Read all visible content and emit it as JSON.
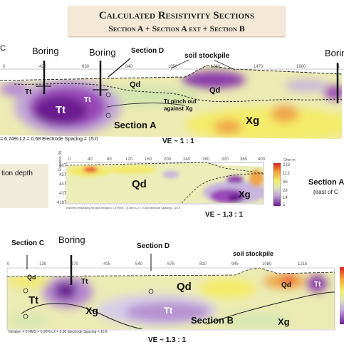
{
  "title": {
    "line1": "Calculated Resistivity Sections",
    "line2": "Section A + Section A ext + Section B"
  },
  "section_a": {
    "ticks": [
      "0",
      "420",
      "630",
      "840",
      "1050",
      "1260",
      "1470",
      "1680",
      "1"
    ],
    "labels": {
      "boring_1": "Boring",
      "boring_2": "Boring",
      "boring_3": "Borin",
      "section_d": "Section D",
      "soil_stockpile": "soil stockpile",
      "edge_c": "C",
      "tt_small": "Tt",
      "tt_large": "Tt",
      "tt_mid": "Tt",
      "qd_1": "Qd",
      "qd_2": "Qd",
      "pinch_note": "Tt pinch out against Xg",
      "xg": "Xg",
      "section_name": "Section A"
    },
    "footer": "= 6.74%   L2 = 0.68     Electrode Spacing = 15.0",
    "ve": "VE ~ 1 : 1"
  },
  "section_a_ext": {
    "side_text": "tion depth",
    "x_ticks": [
      "0",
      "40",
      "80",
      "120",
      "160",
      "200",
      "240",
      "280",
      "320",
      "360",
      "400"
    ],
    "y_axis_label": "Elevation (ft)",
    "y_ticks": [
      "467",
      "457",
      "447",
      "437",
      "4187"
    ],
    "labels": {
      "qd": "Qd",
      "xg": "Xg"
    },
    "footer": "Inverted Resistivity Section   Iteration = 5   RMS = 4.56%   L2 = 0.68   Electrode Spacing = 10.0",
    "ve": "VE ~ 1.3 : 1",
    "legend_title": "Ohm-m",
    "legend_values": [
      "223",
      "113",
      "56",
      "28",
      "14",
      "5"
    ],
    "title_right": "Section A",
    "subtitle_right": "(east of C"
  },
  "section_b": {
    "labels": {
      "section_c": "Section C",
      "boring": "Boring",
      "section_d": "Section D",
      "soil_stockpile": "soil stockpile",
      "qd_left": "Qd",
      "tt_top": "Tt",
      "tt_left": "Tt",
      "xg_left": "Xg",
      "qd_mid": "Qd",
      "tt_center": "Tt",
      "section_name": "Section B",
      "xg_right": "Xg",
      "qd_right": "Qd",
      "tt_right": "Tt"
    },
    "ticks": [
      "0",
      "135",
      "270",
      "405",
      "540",
      "675",
      "810",
      "945",
      "1080",
      "1215"
    ],
    "footer": "Iteration = 6   RMS = 6.96%   L2 = 0.90   Electrode Spacing = 15 ft",
    "ve": "VE ~ 1.3 : 1"
  },
  "colors": {
    "purple_dark": "#6b1a8f",
    "purple": "#9a4ab8",
    "lavender": "#c9b5dd",
    "pale_green": "#d9e7b3",
    "yellow": "#f1e96a",
    "orange": "#f0a64a",
    "red": "#e8352a",
    "title_bg": "#f4e9d6"
  }
}
